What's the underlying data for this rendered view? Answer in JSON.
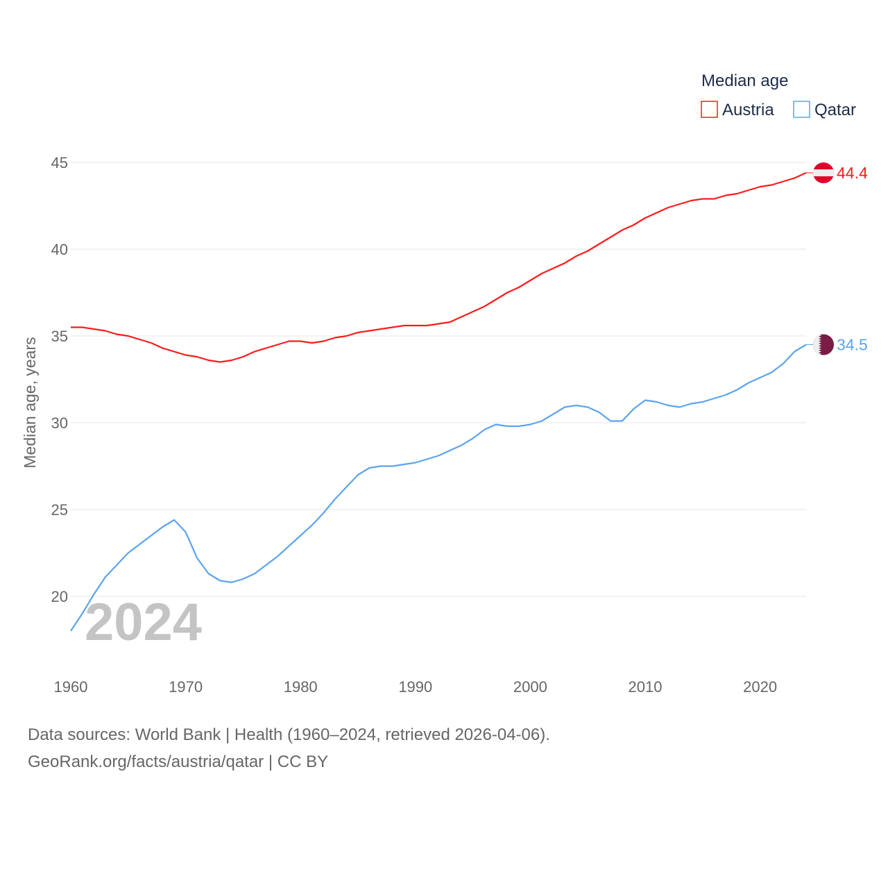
{
  "chart_data": {
    "type": "line",
    "legend_title": "Median age",
    "legend_placement": "top-right",
    "ylabel": "Median age, years",
    "xlabel": "",
    "ylim": [
      17,
      46
    ],
    "xlim": [
      1960,
      2024
    ],
    "y_ticks": [
      20,
      25,
      30,
      35,
      40,
      45
    ],
    "x_ticks": [
      1960,
      1970,
      1980,
      1990,
      2000,
      2010,
      2020
    ],
    "year_overlay": "2024",
    "grid": true,
    "series": [
      {
        "name": "Austria",
        "color": "#ff1a1a",
        "end_label": "44.4",
        "x": [
          1960,
          1961,
          1962,
          1963,
          1964,
          1965,
          1966,
          1967,
          1968,
          1969,
          1970,
          1971,
          1972,
          1973,
          1974,
          1975,
          1976,
          1977,
          1978,
          1979,
          1980,
          1981,
          1982,
          1983,
          1984,
          1985,
          1986,
          1987,
          1988,
          1989,
          1990,
          1991,
          1992,
          1993,
          1994,
          1995,
          1996,
          1997,
          1998,
          1999,
          2000,
          2001,
          2002,
          2003,
          2004,
          2005,
          2006,
          2007,
          2008,
          2009,
          2010,
          2011,
          2012,
          2013,
          2014,
          2015,
          2016,
          2017,
          2018,
          2019,
          2020,
          2021,
          2022,
          2023,
          2024
        ],
        "values": [
          35.5,
          35.5,
          35.4,
          35.3,
          35.1,
          35.0,
          34.8,
          34.6,
          34.3,
          34.1,
          33.9,
          33.8,
          33.6,
          33.5,
          33.6,
          33.8,
          34.1,
          34.3,
          34.5,
          34.7,
          34.7,
          34.6,
          34.7,
          34.9,
          35.0,
          35.2,
          35.3,
          35.4,
          35.5,
          35.6,
          35.6,
          35.6,
          35.7,
          35.8,
          36.1,
          36.4,
          36.7,
          37.1,
          37.5,
          37.8,
          38.2,
          38.6,
          38.9,
          39.2,
          39.6,
          39.9,
          40.3,
          40.7,
          41.1,
          41.4,
          41.8,
          42.1,
          42.4,
          42.6,
          42.8,
          42.9,
          42.9,
          43.1,
          43.2,
          43.4,
          43.6,
          43.7,
          43.9,
          44.1,
          44.4
        ]
      },
      {
        "name": "Qatar",
        "color": "#5ba4ee",
        "end_label": "34.5",
        "x": [
          1960,
          1961,
          1962,
          1963,
          1964,
          1965,
          1966,
          1967,
          1968,
          1969,
          1970,
          1971,
          1972,
          1973,
          1974,
          1975,
          1976,
          1977,
          1978,
          1979,
          1980,
          1981,
          1982,
          1983,
          1984,
          1985,
          1986,
          1987,
          1988,
          1989,
          1990,
          1991,
          1992,
          1993,
          1994,
          1995,
          1996,
          1997,
          1998,
          1999,
          2000,
          2001,
          2002,
          2003,
          2004,
          2005,
          2006,
          2007,
          2008,
          2009,
          2010,
          2011,
          2012,
          2013,
          2014,
          2015,
          2016,
          2017,
          2018,
          2019,
          2020,
          2021,
          2022,
          2023,
          2024
        ],
        "values": [
          18.0,
          19.0,
          20.1,
          21.1,
          21.8,
          22.5,
          23.0,
          23.5,
          24.0,
          24.4,
          23.7,
          22.2,
          21.3,
          20.9,
          20.8,
          21.0,
          21.3,
          21.8,
          22.3,
          22.9,
          23.5,
          24.1,
          24.8,
          25.6,
          26.3,
          27.0,
          27.4,
          27.5,
          27.5,
          27.6,
          27.7,
          27.9,
          28.1,
          28.4,
          28.7,
          29.1,
          29.6,
          29.9,
          29.8,
          29.8,
          29.9,
          30.1,
          30.5,
          30.9,
          31.0,
          30.9,
          30.6,
          30.1,
          30.1,
          30.8,
          31.3,
          31.2,
          31.0,
          30.9,
          31.1,
          31.2,
          31.4,
          31.6,
          31.9,
          32.3,
          32.6,
          32.9,
          33.4,
          34.1,
          34.5
        ]
      }
    ]
  },
  "footer": {
    "sources": "Data sources: World Bank | Health (1960–2024, retrieved 2026-04-06).",
    "url": "GeoRank.org/facts/austria/qatar | CC BY"
  }
}
